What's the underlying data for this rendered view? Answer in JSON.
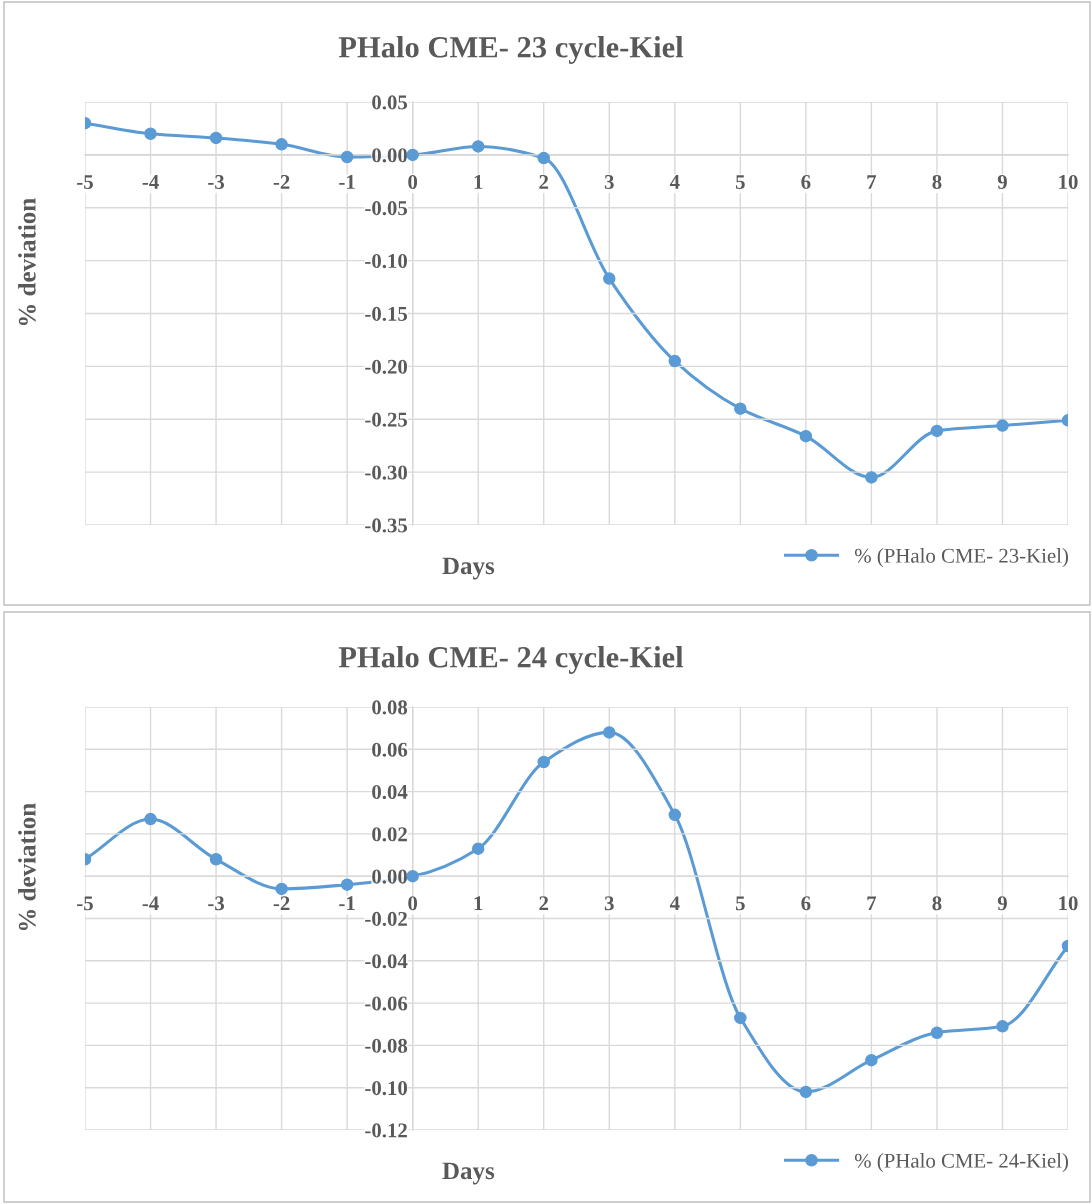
{
  "chart_data": [
    {
      "type": "line",
      "title": "PHalo CME- 23 cycle-Kiel",
      "xlabel": "Days",
      "ylabel": "% deviation",
      "x": [
        -5,
        -4,
        -3,
        -2,
        -1,
        0,
        1,
        2,
        3,
        4,
        5,
        6,
        7,
        8,
        9,
        10
      ],
      "series": [
        {
          "name": "% (PHalo CME- 23-Kiel)",
          "color": "#5b9bd5",
          "values": [
            0.03,
            0.02,
            0.016,
            0.01,
            -0.002,
            0.0,
            0.008,
            -0.003,
            -0.117,
            -0.195,
            -0.24,
            -0.266,
            -0.305,
            -0.261,
            -0.256,
            -0.251
          ]
        }
      ],
      "xlim": [
        -5,
        10
      ],
      "xticks": [
        -5,
        -4,
        -3,
        -2,
        -1,
        0,
        1,
        2,
        3,
        4,
        5,
        6,
        7,
        8,
        9,
        10
      ],
      "ylim": [
        -0.35,
        0.05
      ],
      "yticks": [
        {
          "value": 0.05,
          "label": "0.05"
        },
        {
          "value": 0.0,
          "label": "0.00"
        },
        {
          "value": -0.05,
          "label": "-0.05"
        },
        {
          "value": -0.1,
          "label": "-0.10"
        },
        {
          "value": -0.15,
          "label": "-0.15"
        },
        {
          "value": -0.2,
          "label": "-0.20"
        },
        {
          "value": -0.25,
          "label": "-0.25"
        },
        {
          "value": -0.3,
          "label": "-0.30"
        },
        {
          "value": -0.35,
          "label": "-0.35"
        }
      ],
      "grid": true,
      "legend": "bottom right",
      "marker": "circle",
      "line_style": "solid"
    },
    {
      "type": "line",
      "title": "PHalo CME- 24 cycle-Kiel",
      "xlabel": "Days",
      "ylabel": "% deviation",
      "x": [
        -5,
        -4,
        -3,
        -2,
        -1,
        0,
        1,
        2,
        3,
        4,
        5,
        6,
        7,
        8,
        9,
        10
      ],
      "series": [
        {
          "name": "% (PHalo CME- 24-Kiel)",
          "color": "#5b9bd5",
          "values": [
            0.008,
            0.027,
            0.008,
            -0.006,
            -0.004,
            0.0,
            0.013,
            0.054,
            0.068,
            0.029,
            -0.067,
            -0.102,
            -0.087,
            -0.074,
            -0.071,
            -0.033
          ]
        }
      ],
      "xlim": [
        -5,
        10
      ],
      "xticks": [
        -5,
        -4,
        -3,
        -2,
        -1,
        0,
        1,
        2,
        3,
        4,
        5,
        6,
        7,
        8,
        9,
        10
      ],
      "ylim": [
        -0.12,
        0.08
      ],
      "yticks": [
        {
          "value": 0.08,
          "label": "0.08"
        },
        {
          "value": 0.06,
          "label": "0.06"
        },
        {
          "value": 0.04,
          "label": "0.04"
        },
        {
          "value": 0.02,
          "label": "0.02"
        },
        {
          "value": 0.0,
          "label": "0.00"
        },
        {
          "value": -0.02,
          "label": "-0.02"
        },
        {
          "value": -0.04,
          "label": "-0.04"
        },
        {
          "value": -0.06,
          "label": "-0.06"
        },
        {
          "value": -0.08,
          "label": "-0.08"
        },
        {
          "value": -0.1,
          "label": "-0.10"
        },
        {
          "value": -0.12,
          "label": "-0.12"
        }
      ],
      "grid": true,
      "legend": "bottom right",
      "marker": "circle",
      "line_style": "solid"
    }
  ]
}
